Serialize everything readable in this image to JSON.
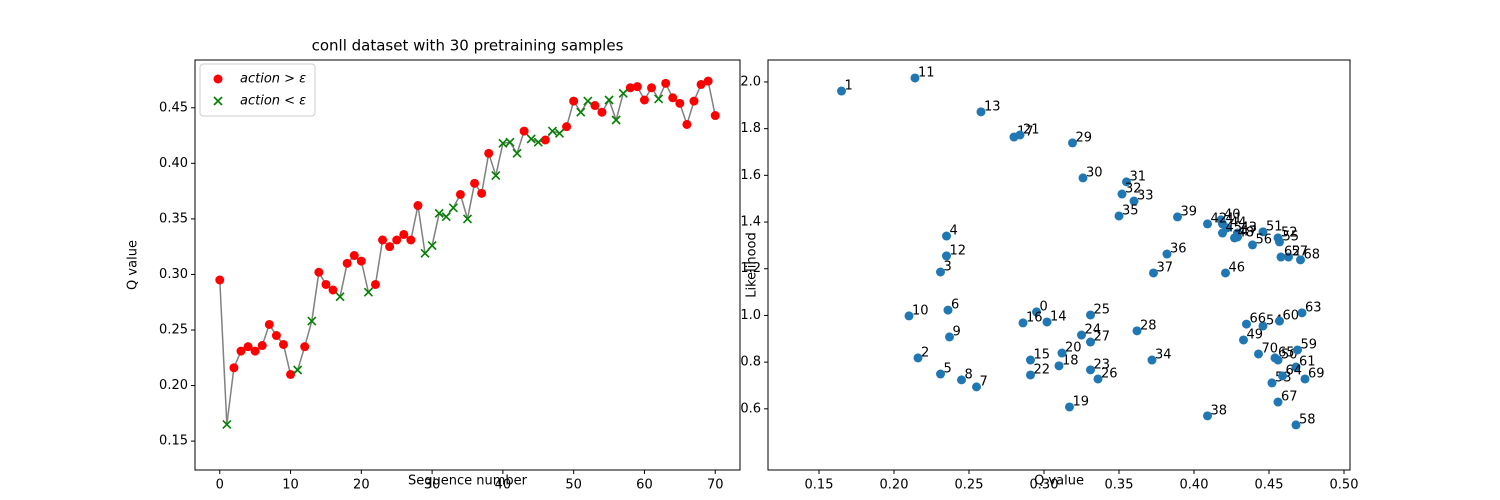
{
  "chart_data": [
    {
      "type": "line",
      "title": "conll dataset with 30 pretraining samples",
      "xlabel": "Sequence number",
      "ylabel": "Q value",
      "x": [
        0,
        1,
        2,
        3,
        4,
        5,
        6,
        7,
        8,
        9,
        10,
        11,
        12,
        13,
        14,
        15,
        16,
        17,
        18,
        19,
        20,
        21,
        22,
        23,
        24,
        25,
        26,
        27,
        28,
        29,
        30,
        31,
        32,
        33,
        34,
        35,
        36,
        37,
        38,
        39,
        40,
        41,
        42,
        43,
        44,
        45,
        46,
        47,
        48,
        49,
        50,
        51,
        52,
        53,
        54,
        55,
        56,
        57,
        58,
        59,
        60,
        61,
        62,
        63,
        64,
        65,
        66,
        67,
        68,
        69,
        70
      ],
      "line_color": "#808080",
      "series": [
        {
          "name": "action > ε",
          "color": "#ff0000",
          "marker": "o",
          "values": [
            0.295,
            null,
            0.216,
            0.231,
            0.235,
            0.231,
            0.236,
            0.255,
            0.245,
            0.237,
            0.21,
            null,
            0.235,
            null,
            0.302,
            0.291,
            0.286,
            null,
            0.31,
            0.317,
            0.312,
            null,
            0.291,
            0.331,
            0.325,
            0.331,
            0.336,
            0.331,
            0.362,
            null,
            null,
            null,
            null,
            null,
            0.372,
            null,
            0.382,
            0.373,
            0.409,
            null,
            null,
            null,
            null,
            0.429,
            null,
            null,
            0.421,
            null,
            null,
            0.433,
            0.456,
            null,
            null,
            0.452,
            0.446,
            null,
            null,
            null,
            0.468,
            0.469,
            0.457,
            0.468,
            null,
            0.472,
            0.459,
            0.454,
            0.435,
            0.456,
            0.471,
            0.474,
            0.443
          ]
        },
        {
          "name": "action < ε",
          "color": "#008000",
          "marker": "x",
          "values": [
            null,
            0.165,
            null,
            null,
            null,
            null,
            null,
            null,
            null,
            null,
            null,
            0.214,
            null,
            0.258,
            null,
            null,
            null,
            0.28,
            null,
            null,
            null,
            0.284,
            null,
            null,
            null,
            null,
            null,
            null,
            null,
            0.319,
            0.326,
            0.355,
            0.352,
            0.36,
            null,
            0.35,
            null,
            null,
            null,
            0.389,
            0.418,
            0.419,
            0.409,
            null,
            0.422,
            0.419,
            null,
            0.429,
            0.427,
            null,
            null,
            0.446,
            0.456,
            null,
            null,
            0.457,
            0.439,
            0.463,
            null,
            null,
            null,
            null,
            0.458,
            null,
            null,
            null,
            null,
            null,
            null,
            null,
            null
          ]
        }
      ],
      "xlim": [
        -3.5,
        73.5
      ],
      "xticks": [
        0,
        10,
        20,
        30,
        40,
        50,
        60,
        70
      ],
      "ylim": [
        0.124,
        0.493
      ],
      "yticks": [
        0.15,
        {
          "value": 0.2,
          "label": "0.20"
        },
        0.25,
        {
          "value": 0.3,
          "label": "0.30"
        },
        0.35,
        {
          "value": 0.4,
          "label": "0.40"
        },
        0.45
      ],
      "legend": "upper left"
    },
    {
      "type": "scatter",
      "xlabel": "Q value",
      "ylabel": "Likelihood",
      "color": "#1f77b4",
      "x": [
        0.295,
        0.165,
        0.216,
        0.231,
        0.235,
        0.231,
        0.236,
        0.255,
        0.245,
        0.237,
        0.21,
        0.214,
        0.235,
        0.258,
        0.302,
        0.291,
        0.286,
        0.28,
        0.31,
        0.317,
        0.312,
        0.284,
        0.291,
        0.331,
        0.325,
        0.331,
        0.336,
        0.331,
        0.362,
        0.319,
        0.326,
        0.355,
        0.352,
        0.36,
        0.372,
        0.35,
        0.382,
        0.373,
        0.409,
        0.389,
        0.418,
        0.419,
        0.409,
        0.429,
        0.422,
        0.419,
        0.421,
        0.429,
        0.427,
        0.433,
        0.456,
        0.446,
        0.456,
        0.452,
        0.446,
        0.457,
        0.439,
        0.463,
        0.468,
        0.469,
        0.457,
        0.468,
        0.458,
        0.472,
        0.459,
        0.454,
        0.435,
        0.456,
        0.471,
        0.474,
        0.443
      ],
      "values": [
        1.015,
        1.961,
        0.818,
        1.186,
        1.34,
        0.749,
        1.023,
        0.694,
        0.724,
        0.908,
        0.998,
        2.017,
        1.255,
        1.872,
        0.972,
        0.809,
        0.968,
        1.764,
        0.784,
        0.608,
        0.839,
        1.773,
        0.745,
        0.767,
        0.916,
        1.002,
        0.728,
        0.886,
        0.934,
        1.739,
        1.589,
        1.572,
        1.52,
        1.49,
        0.809,
        1.426,
        1.263,
        1.182,
        0.57,
        1.422,
        1.409,
        1.392,
        1.392,
        1.353,
        1.375,
        1.353,
        1.182,
        1.336,
        1.332,
        0.895,
        0.809,
        1.358,
        1.332,
        0.711,
        0.955,
        1.315,
        1.302,
        1.25,
        0.531,
        0.852,
        0.976,
        0.779,
        1.25,
        1.011,
        0.741,
        0.818,
        0.963,
        0.629,
        1.238,
        0.728,
        0.835
      ],
      "labels": [
        "0",
        "1",
        "2",
        "3",
        "4",
        "5",
        "6",
        "7",
        "8",
        "9",
        "10",
        "11",
        "12",
        "13",
        "14",
        "15",
        "16",
        "17",
        "18",
        "19",
        "20",
        "21",
        "22",
        "23",
        "24",
        "25",
        "26",
        "27",
        "28",
        "29",
        "30",
        "31",
        "32",
        "33",
        "34",
        "35",
        "36",
        "37",
        "38",
        "39",
        "40",
        "41",
        "42",
        "43",
        "44",
        "45",
        "46",
        "47",
        "48",
        "49",
        "50",
        "51",
        "52",
        "53",
        "54",
        "55",
        "56",
        "57",
        "58",
        "59",
        "60",
        "61",
        "62",
        "63",
        "64",
        "65",
        "66",
        "67",
        "68",
        "69",
        "70"
      ],
      "xlim": [
        0.116,
        0.504
      ],
      "xticks": [
        0.15,
        {
          "value": 0.2,
          "label": "0.20"
        },
        0.25,
        {
          "value": 0.3,
          "label": "0.30"
        },
        0.35,
        {
          "value": 0.4,
          "label": "0.40"
        },
        0.45,
        {
          "value": 0.5,
          "label": "0.50"
        }
      ],
      "ylim": [
        0.338,
        2.094
      ],
      "yticks": [
        0.6,
        0.8,
        {
          "value": 1,
          "label": "1.0"
        },
        1.2,
        1.4,
        1.6,
        1.8,
        {
          "value": 2,
          "label": "2.0"
        }
      ]
    }
  ]
}
